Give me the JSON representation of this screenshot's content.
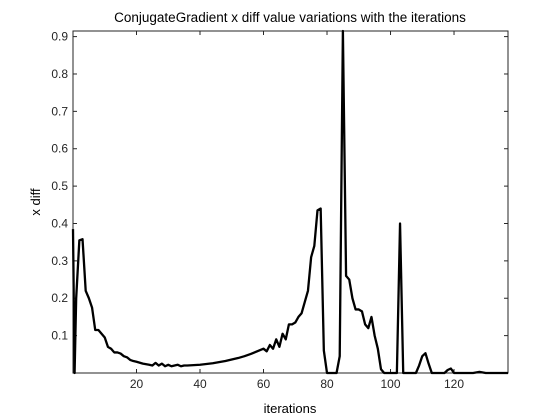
{
  "chart_data": {
    "type": "line",
    "title": "ConjugateGradient x diff value variations with the iterations",
    "xlabel": "iterations",
    "ylabel": "x diff",
    "xlim": [
      0,
      137
    ],
    "ylim": [
      0,
      0.915
    ],
    "xticks": [
      20,
      40,
      60,
      80,
      100,
      120
    ],
    "yticks": [
      0.1,
      0.2,
      0.3,
      0.4,
      0.5,
      0.6,
      0.7,
      0.8,
      0.9
    ],
    "grid": false,
    "line_color": "#000000",
    "series": [
      {
        "x": [
          0,
          0.5,
          1,
          2,
          3,
          4,
          5,
          6,
          7,
          8,
          9,
          10,
          11,
          12,
          13,
          14,
          15,
          16,
          17,
          18,
          19,
          20,
          22,
          24,
          25,
          26,
          27,
          28,
          29,
          30,
          31,
          32,
          33,
          34,
          35,
          36,
          38,
          40,
          42,
          44,
          46,
          48,
          50,
          52,
          54,
          56,
          58,
          60,
          61,
          62,
          63,
          64,
          65,
          66,
          67,
          68,
          69,
          70,
          71,
          72,
          73,
          74,
          75,
          76,
          77,
          78,
          79,
          80,
          81,
          82,
          83,
          84,
          85,
          86,
          87,
          88,
          89,
          90,
          91,
          92,
          93,
          94,
          95,
          96,
          97,
          98,
          99,
          100,
          101,
          102,
          103,
          104,
          105,
          106,
          107,
          108,
          109,
          110,
          111,
          112,
          113,
          114,
          115,
          116,
          117,
          118,
          119,
          120,
          121,
          122,
          124,
          126,
          128,
          130,
          132,
          134,
          136,
          137
        ],
        "values": [
          0.385,
          0.0,
          0.2,
          0.355,
          0.358,
          0.22,
          0.2,
          0.175,
          0.115,
          0.115,
          0.105,
          0.095,
          0.07,
          0.065,
          0.055,
          0.055,
          0.052,
          0.045,
          0.042,
          0.035,
          0.032,
          0.03,
          0.025,
          0.022,
          0.02,
          0.027,
          0.02,
          0.025,
          0.018,
          0.022,
          0.018,
          0.02,
          0.022,
          0.018,
          0.02,
          0.02,
          0.021,
          0.022,
          0.024,
          0.026,
          0.029,
          0.032,
          0.036,
          0.04,
          0.045,
          0.051,
          0.058,
          0.065,
          0.058,
          0.075,
          0.065,
          0.09,
          0.07,
          0.105,
          0.09,
          0.13,
          0.13,
          0.135,
          0.15,
          0.16,
          0.19,
          0.22,
          0.31,
          0.34,
          0.435,
          0.44,
          0.06,
          0.0,
          0.0,
          0.0,
          0.0,
          0.045,
          0.915,
          0.26,
          0.25,
          0.2,
          0.17,
          0.17,
          0.165,
          0.13,
          0.12,
          0.15,
          0.1,
          0.065,
          0.01,
          0.0,
          0.0,
          0.0,
          0.0,
          0.0,
          0.4,
          0.0,
          0.0,
          0.0,
          0.0,
          0.0,
          0.02,
          0.045,
          0.053,
          0.025,
          0.0,
          0.0,
          0.0,
          0.0,
          0.0,
          0.008,
          0.012,
          0.0,
          0.0,
          0.0,
          0.0,
          0.0,
          0.003,
          0.0,
          0.0,
          0.0,
          0.0,
          0.0
        ]
      }
    ]
  }
}
